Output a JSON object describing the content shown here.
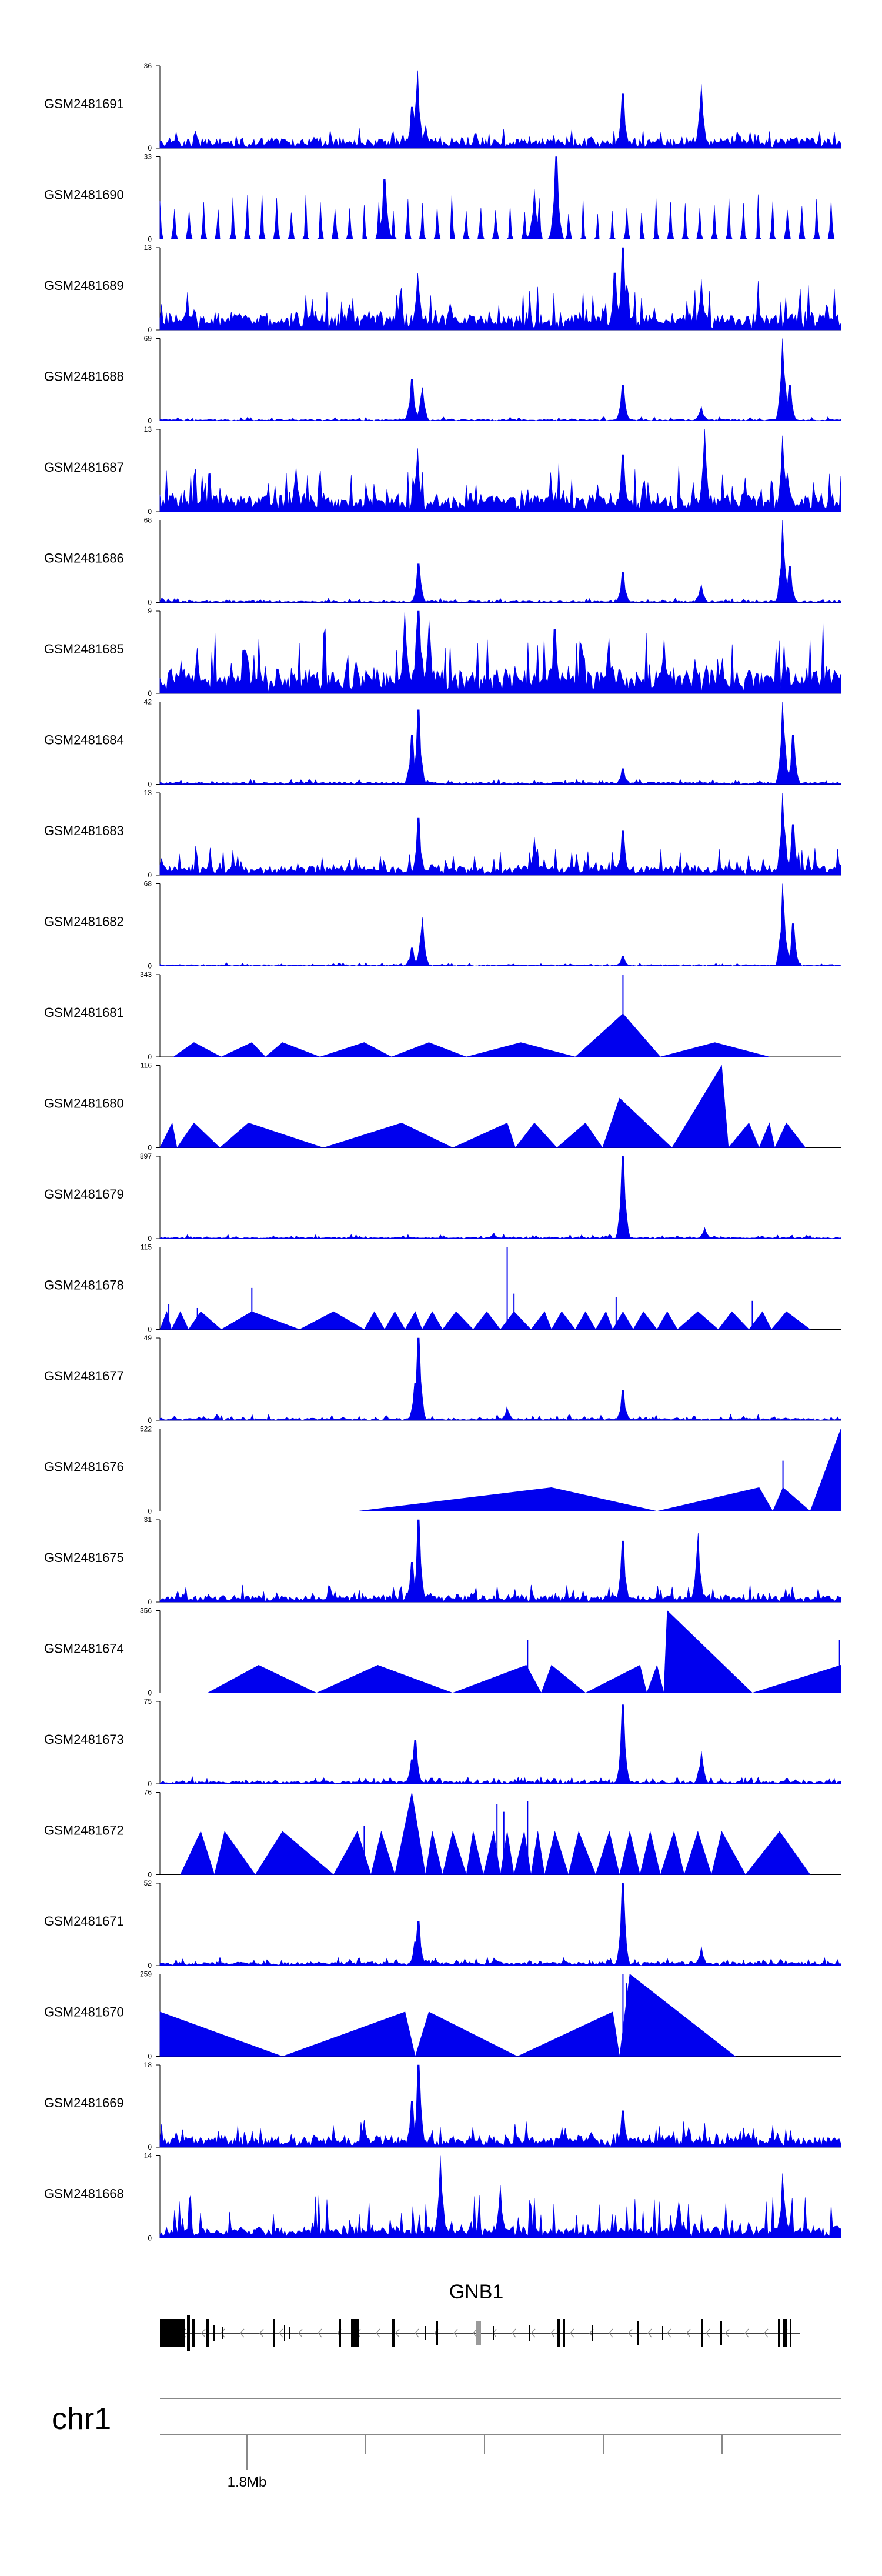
{
  "colors": {
    "signal": "#0000ee",
    "axis": "#000000",
    "gene": "#000000",
    "grey": "#9a9a9a"
  },
  "chart_data": {
    "type": "area",
    "title": "",
    "xlabel": "chr1",
    "chromosome": "chr1",
    "gene_name": "GNB1",
    "x_ticks": [
      "1.8Mb"
    ],
    "tracks": [
      {
        "name": "GSM2481691",
        "ymax": 36,
        "ymin": 0,
        "style": "dense",
        "baseline": 4,
        "noise": 5,
        "peaks": [
          [
            0.378,
            34
          ],
          [
            0.37,
            18
          ],
          [
            0.39,
            10
          ],
          [
            0.68,
            24
          ],
          [
            0.795,
            28
          ]
        ]
      },
      {
        "name": "GSM2481690",
        "ymax": 33,
        "ymin": 0,
        "style": "spiky",
        "baseline": 0,
        "noise": 14,
        "peaks": [
          [
            0.582,
            33
          ],
          [
            0.55,
            20
          ],
          [
            0.33,
            24
          ]
        ]
      },
      {
        "name": "GSM2481689",
        "ymax": 13,
        "ymin": 0,
        "style": "dense",
        "baseline": 2,
        "noise": 6,
        "peaks": [
          [
            0.379,
            9
          ],
          [
            0.68,
            13
          ],
          [
            0.668,
            9
          ],
          [
            0.795,
            8
          ]
        ]
      },
      {
        "name": "GSM2481688",
        "ymax": 69,
        "ymin": 0,
        "style": "dense",
        "baseline": 1,
        "noise": 3,
        "peaks": [
          [
            0.37,
            35
          ],
          [
            0.385,
            28
          ],
          [
            0.68,
            30
          ],
          [
            0.795,
            12
          ],
          [
            0.915,
            69
          ],
          [
            0.925,
            30
          ]
        ]
      },
      {
        "name": "GSM2481687",
        "ymax": 13,
        "ymin": 0,
        "style": "dense",
        "baseline": 2,
        "noise": 6,
        "peaks": [
          [
            0.378,
            10
          ],
          [
            0.68,
            9
          ],
          [
            0.8,
            13
          ],
          [
            0.915,
            12
          ],
          [
            0.2,
            7
          ]
        ]
      },
      {
        "name": "GSM2481686",
        "ymax": 68,
        "ymin": 0,
        "style": "dense",
        "baseline": 1,
        "noise": 3,
        "peaks": [
          [
            0.38,
            32
          ],
          [
            0.68,
            25
          ],
          [
            0.795,
            15
          ],
          [
            0.915,
            68
          ],
          [
            0.925,
            30
          ]
        ]
      },
      {
        "name": "GSM2481685",
        "ymax": 9,
        "ymin": 0,
        "style": "dense",
        "baseline": 2,
        "noise": 6,
        "peaks": [
          [
            0.36,
            9
          ],
          [
            0.38,
            9
          ],
          [
            0.395,
            8
          ],
          [
            0.58,
            7
          ],
          [
            0.74,
            6
          ]
        ]
      },
      {
        "name": "GSM2481684",
        "ymax": 42,
        "ymin": 0,
        "style": "dense",
        "baseline": 1,
        "noise": 2,
        "peaks": [
          [
            0.37,
            25
          ],
          [
            0.38,
            38
          ],
          [
            0.68,
            8
          ],
          [
            0.915,
            42
          ],
          [
            0.93,
            25
          ]
        ]
      },
      {
        "name": "GSM2481683",
        "ymax": 13,
        "ymin": 0,
        "style": "dense",
        "baseline": 1,
        "noise": 4,
        "peaks": [
          [
            0.38,
            9
          ],
          [
            0.55,
            6
          ],
          [
            0.68,
            7
          ],
          [
            0.915,
            13
          ],
          [
            0.93,
            8
          ]
        ]
      },
      {
        "name": "GSM2481682",
        "ymax": 68,
        "ymin": 0,
        "style": "dense",
        "baseline": 1,
        "noise": 2,
        "peaks": [
          [
            0.37,
            15
          ],
          [
            0.385,
            40
          ],
          [
            0.68,
            8
          ],
          [
            0.915,
            68
          ],
          [
            0.93,
            35
          ]
        ]
      },
      {
        "name": "GSM2481681",
        "ymax": 343,
        "ymin": 0,
        "style": "tri",
        "tris": [
          [
            0.02,
            0.05,
            0.09,
            60
          ],
          [
            0.09,
            0.135,
            0.155,
            60
          ],
          [
            0.155,
            0.18,
            0.235,
            60
          ],
          [
            0.235,
            0.3,
            0.34,
            60
          ],
          [
            0.34,
            0.395,
            0.45,
            60
          ],
          [
            0.45,
            0.53,
            0.61,
            60
          ],
          [
            0.61,
            0.68,
            0.735,
            180
          ],
          [
            0.735,
            0.815,
            0.895,
            60
          ]
        ],
        "spikes": [
          [
            0.68,
            343
          ]
        ]
      },
      {
        "name": "GSM2481680",
        "ymax": 116,
        "ymin": 0,
        "style": "tri",
        "tris": [
          [
            0,
            0.018,
            0.025,
            35
          ],
          [
            0.025,
            0.05,
            0.088,
            35
          ],
          [
            0.088,
            0.13,
            0.24,
            35
          ],
          [
            0.24,
            0.355,
            0.43,
            35
          ],
          [
            0.43,
            0.51,
            0.522,
            35
          ],
          [
            0.522,
            0.55,
            0.583,
            35
          ],
          [
            0.583,
            0.625,
            0.65,
            35
          ],
          [
            0.65,
            0.675,
            0.752,
            70
          ],
          [
            0.752,
            0.825,
            0.835,
            116
          ],
          [
            0.835,
            0.865,
            0.88,
            35
          ],
          [
            0.88,
            0.895,
            0.903,
            35
          ],
          [
            0.903,
            0.92,
            0.948,
            35
          ]
        ],
        "spikes": []
      },
      {
        "name": "GSM2481679",
        "ymax": 897,
        "ymin": 0,
        "style": "dense",
        "baseline": 10,
        "noise": 40,
        "peaks": [
          [
            0.68,
            897
          ],
          [
            0.8,
            120
          ],
          [
            0.49,
            60
          ]
        ]
      },
      {
        "name": "GSM2481678",
        "ymax": 115,
        "ymin": 0,
        "style": "tri",
        "tris": [
          [
            0,
            0.01,
            0.017,
            25
          ],
          [
            0.017,
            0.03,
            0.042,
            25
          ],
          [
            0.042,
            0.06,
            0.09,
            25
          ],
          [
            0.09,
            0.135,
            0.205,
            25
          ],
          [
            0.205,
            0.255,
            0.3,
            25
          ],
          [
            0.3,
            0.315,
            0.33,
            25
          ],
          [
            0.33,
            0.345,
            0.36,
            25
          ],
          [
            0.36,
            0.375,
            0.385,
            25
          ],
          [
            0.385,
            0.4,
            0.415,
            25
          ],
          [
            0.415,
            0.435,
            0.46,
            25
          ],
          [
            0.46,
            0.48,
            0.5,
            25
          ],
          [
            0.5,
            0.52,
            0.545,
            25
          ],
          [
            0.545,
            0.565,
            0.575,
            25
          ],
          [
            0.575,
            0.59,
            0.61,
            25
          ],
          [
            0.61,
            0.625,
            0.64,
            25
          ],
          [
            0.64,
            0.655,
            0.665,
            25
          ],
          [
            0.665,
            0.68,
            0.695,
            25
          ],
          [
            0.695,
            0.71,
            0.73,
            25
          ],
          [
            0.73,
            0.745,
            0.76,
            25
          ],
          [
            0.76,
            0.79,
            0.82,
            25
          ],
          [
            0.82,
            0.84,
            0.865,
            25
          ],
          [
            0.865,
            0.885,
            0.898,
            25
          ],
          [
            0.898,
            0.92,
            0.955,
            25
          ]
        ],
        "spikes": [
          [
            0.013,
            35
          ],
          [
            0.055,
            30
          ],
          [
            0.135,
            58
          ],
          [
            0.51,
            115
          ],
          [
            0.52,
            50
          ],
          [
            0.67,
            45
          ],
          [
            0.87,
            40
          ]
        ]
      },
      {
        "name": "GSM2481677",
        "ymax": 49,
        "ymin": 0,
        "style": "dense",
        "baseline": 1,
        "noise": 3,
        "peaks": [
          [
            0.38,
            49
          ],
          [
            0.375,
            22
          ],
          [
            0.51,
            8
          ],
          [
            0.68,
            18
          ]
        ]
      },
      {
        "name": "GSM2481676",
        "ymax": 522,
        "ymin": 0,
        "style": "tri",
        "tris": [
          [
            0.29,
            0.575,
            0.73,
            150
          ],
          [
            0.73,
            0.88,
            0.9,
            150
          ],
          [
            0.9,
            0.915,
            0.955,
            150
          ],
          [
            0.955,
            1,
            1,
            522
          ]
        ],
        "spikes": [
          [
            0.915,
            320
          ]
        ]
      },
      {
        "name": "GSM2481675",
        "ymax": 31,
        "ymin": 0,
        "style": "dense",
        "baseline": 2,
        "noise": 5,
        "peaks": [
          [
            0.38,
            31
          ],
          [
            0.37,
            15
          ],
          [
            0.68,
            23
          ],
          [
            0.79,
            26
          ]
        ]
      },
      {
        "name": "GSM2481674",
        "ymax": 356,
        "ymin": 0,
        "style": "tri",
        "tris": [
          [
            0.07,
            0.145,
            0.23,
            120
          ],
          [
            0.23,
            0.32,
            0.43,
            120
          ],
          [
            0.43,
            0.538,
            0.56,
            120
          ],
          [
            0.56,
            0.575,
            0.625,
            120
          ],
          [
            0.625,
            0.705,
            0.715,
            120
          ],
          [
            0.715,
            0.73,
            0.74,
            120
          ],
          [
            0.74,
            0.745,
            0.87,
            356
          ],
          [
            0.87,
            1,
            1,
            120
          ]
        ],
        "spikes": [
          [
            0.54,
            230
          ],
          [
            0.998,
            230
          ]
        ]
      },
      {
        "name": "GSM2481673",
        "ymax": 75,
        "ymin": 0,
        "style": "dense",
        "baseline": 2,
        "noise": 5,
        "peaks": [
          [
            0.375,
            40
          ],
          [
            0.37,
            22
          ],
          [
            0.68,
            72
          ],
          [
            0.795,
            30
          ]
        ]
      },
      {
        "name": "GSM2481672",
        "ymax": 76,
        "ymin": 0,
        "style": "tri",
        "tris": [
          [
            0.03,
            0.06,
            0.08,
            40
          ],
          [
            0.08,
            0.095,
            0.14,
            40
          ],
          [
            0.14,
            0.18,
            0.255,
            40
          ],
          [
            0.255,
            0.29,
            0.31,
            40
          ],
          [
            0.31,
            0.325,
            0.345,
            40
          ],
          [
            0.345,
            0.37,
            0.39,
            76
          ],
          [
            0.39,
            0.4,
            0.415,
            40
          ],
          [
            0.415,
            0.43,
            0.45,
            40
          ],
          [
            0.45,
            0.46,
            0.475,
            40
          ],
          [
            0.475,
            0.49,
            0.5,
            40
          ],
          [
            0.5,
            0.51,
            0.52,
            40
          ],
          [
            0.52,
            0.535,
            0.545,
            40
          ],
          [
            0.545,
            0.555,
            0.565,
            40
          ],
          [
            0.565,
            0.58,
            0.6,
            40
          ],
          [
            0.6,
            0.615,
            0.64,
            40
          ],
          [
            0.64,
            0.66,
            0.675,
            40
          ],
          [
            0.675,
            0.69,
            0.705,
            40
          ],
          [
            0.705,
            0.72,
            0.735,
            40
          ],
          [
            0.735,
            0.755,
            0.77,
            40
          ],
          [
            0.77,
            0.79,
            0.81,
            40
          ],
          [
            0.81,
            0.825,
            0.86,
            40
          ],
          [
            0.86,
            0.91,
            0.955,
            40
          ]
        ],
        "spikes": [
          [
            0.495,
            65
          ],
          [
            0.505,
            58
          ],
          [
            0.54,
            68
          ],
          [
            0.3,
            45
          ]
        ]
      },
      {
        "name": "GSM2481671",
        "ymax": 52,
        "ymin": 0,
        "style": "dense",
        "baseline": 2,
        "noise": 4,
        "peaks": [
          [
            0.38,
            28
          ],
          [
            0.375,
            15
          ],
          [
            0.68,
            52
          ],
          [
            0.795,
            12
          ]
        ]
      },
      {
        "name": "GSM2481670",
        "ymax": 259,
        "ymin": 0,
        "style": "tri",
        "tris": [
          [
            0,
            0,
            0.18,
            140
          ],
          [
            0.18,
            0.36,
            0.375,
            140
          ],
          [
            0.375,
            0.395,
            0.525,
            140
          ],
          [
            0.525,
            0.665,
            0.675,
            140
          ],
          [
            0.675,
            0.69,
            0.845,
            259
          ]
        ],
        "spikes": [
          [
            0.68,
            259
          ],
          [
            0.685,
            230
          ]
        ]
      },
      {
        "name": "GSM2481669",
        "ymax": 18,
        "ymin": 0,
        "style": "dense",
        "baseline": 2,
        "noise": 4,
        "peaks": [
          [
            0.38,
            18
          ],
          [
            0.37,
            10
          ],
          [
            0.68,
            8
          ],
          [
            0.3,
            6
          ]
        ]
      },
      {
        "name": "GSM2481668",
        "ymax": 14,
        "ymin": 0,
        "style": "dense",
        "baseline": 1,
        "noise": 7,
        "peaks": [
          [
            0.412,
            14
          ],
          [
            0.915,
            11
          ],
          [
            0.5,
            9
          ]
        ]
      }
    ]
  }
}
